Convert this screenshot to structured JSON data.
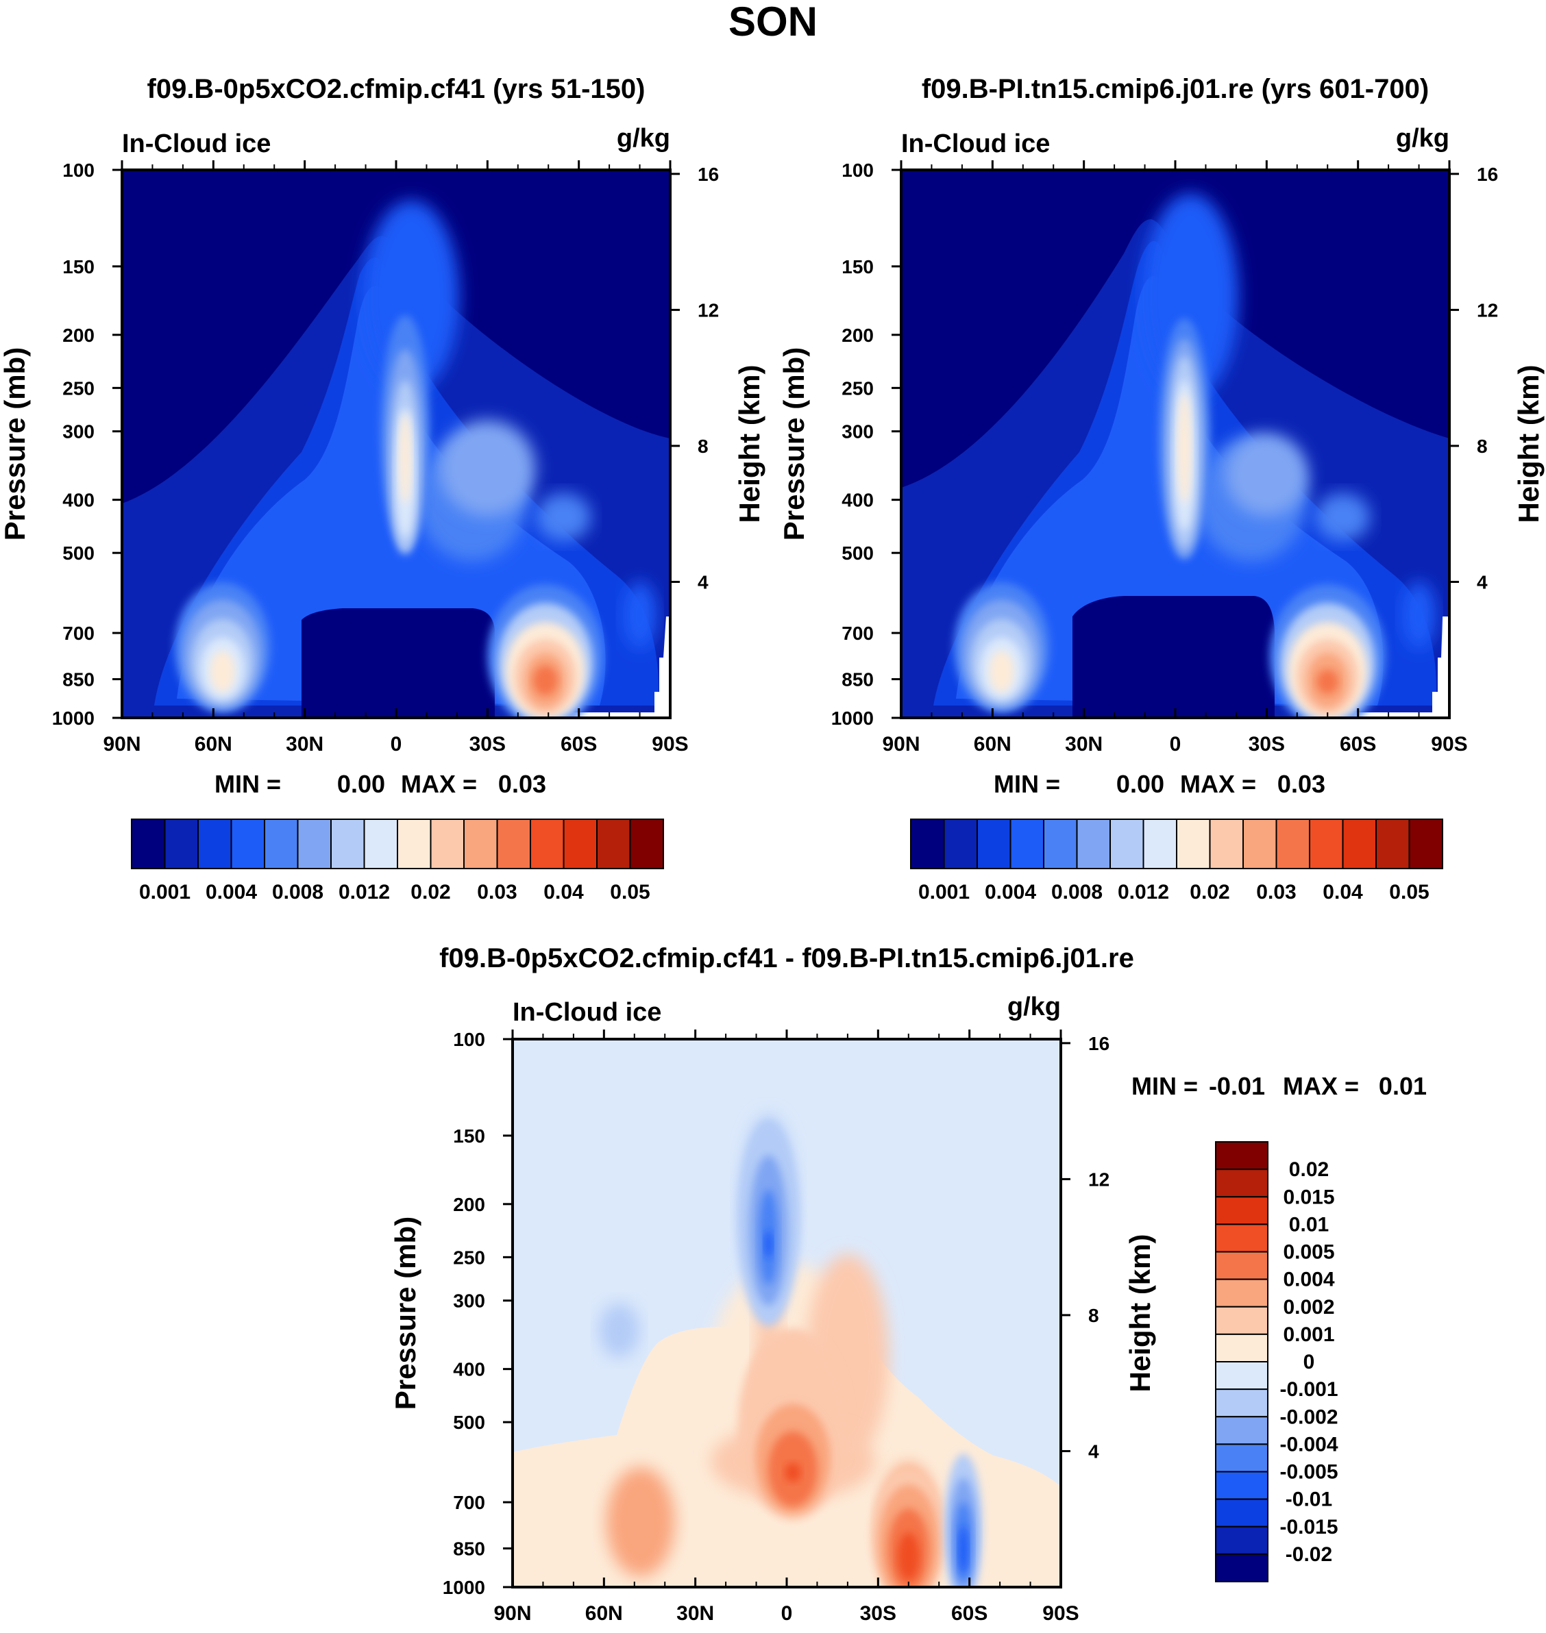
{
  "figure_title": "SON",
  "chart_data": [
    {
      "type": "contour",
      "title": "f09.B-0p5xCO2.cfmip.cf41 (yrs 51-150)",
      "variable": "In-Cloud ice",
      "units": "g/kg",
      "ylabel": "Pressure (mb)",
      "ylabel_right": "Height (km)",
      "x_ticks": [
        "90N",
        "60N",
        "30N",
        "0",
        "30S",
        "60S",
        "90S"
      ],
      "y_ticks": [
        100,
        150,
        200,
        250,
        300,
        400,
        500,
        700,
        850,
        1000
      ],
      "height_ticks": [
        16,
        12,
        8,
        4
      ],
      "stats": {
        "min_label": "MIN =",
        "min": "0.00",
        "max_label": "MAX =",
        "max": "0.03"
      },
      "colorbar": {
        "orientation": "horizontal",
        "colors": [
          "#00007f",
          "#0a23b4",
          "#0d40e2",
          "#1e5cf8",
          "#4a82f5",
          "#80a6f3",
          "#b3ccf7",
          "#dce9fb",
          "#fdebd8",
          "#fcc9ad",
          "#f9a57d",
          "#f5754a",
          "#f04e24",
          "#e03410",
          "#b4200a",
          "#800000"
        ],
        "labels": [
          "0.001",
          "0.004",
          "0.008",
          "0.012",
          "0.02",
          "0.03",
          "0.04",
          "0.05"
        ]
      },
      "features": [
        {
          "lat": -3,
          "p": 300,
          "value": 0.02
        },
        {
          "lat": 57,
          "p": 800,
          "value": 0.02
        },
        {
          "lat": -49,
          "p": 830,
          "value": 0.03
        }
      ]
    },
    {
      "type": "contour",
      "title": "f09.B-PI.tn15.cmip6.j01.re (yrs 601-700)",
      "variable": "In-Cloud ice",
      "units": "g/kg",
      "ylabel": "Pressure (mb)",
      "ylabel_right": "Height (km)",
      "x_ticks": [
        "90N",
        "60N",
        "30N",
        "0",
        "30S",
        "60S",
        "90S"
      ],
      "y_ticks": [
        100,
        150,
        200,
        250,
        300,
        400,
        500,
        700,
        850,
        1000
      ],
      "height_ticks": [
        16,
        12,
        8,
        4
      ],
      "stats": {
        "min_label": "MIN =",
        "min": "0.00",
        "max_label": "MAX =",
        "max": "0.03"
      },
      "colorbar": {
        "orientation": "horizontal",
        "colors": [
          "#00007f",
          "#0a23b4",
          "#0d40e2",
          "#1e5cf8",
          "#4a82f5",
          "#80a6f3",
          "#b3ccf7",
          "#dce9fb",
          "#fdebd8",
          "#fcc9ad",
          "#f9a57d",
          "#f5754a",
          "#f04e24",
          "#e03410",
          "#b4200a",
          "#800000"
        ],
        "labels": [
          "0.001",
          "0.004",
          "0.008",
          "0.012",
          "0.02",
          "0.03",
          "0.04",
          "0.05"
        ]
      },
      "features": [
        {
          "lat": -3,
          "p": 300,
          "value": 0.02
        },
        {
          "lat": 57,
          "p": 800,
          "value": 0.02
        },
        {
          "lat": -50,
          "p": 830,
          "value": 0.03
        }
      ]
    },
    {
      "type": "contour",
      "title": "f09.B-0p5xCO2.cfmip.cf41 - f09.B-PI.tn15.cmip6.j01.re",
      "variable": "In-Cloud ice",
      "units": "g/kg",
      "ylabel": "Pressure (mb)",
      "ylabel_right": "Height (km)",
      "x_ticks": [
        "90N",
        "60N",
        "30N",
        "0",
        "30S",
        "60S",
        "90S"
      ],
      "y_ticks": [
        100,
        150,
        200,
        250,
        300,
        400,
        500,
        700,
        850,
        1000
      ],
      "height_ticks": [
        16,
        12,
        8,
        4
      ],
      "stats": {
        "min_label": "MIN =",
        "min": "-0.01",
        "max_label": "MAX =",
        "max": "0.01"
      },
      "colorbar": {
        "orientation": "vertical",
        "colors": [
          "#800000",
          "#b4200a",
          "#e03410",
          "#f04e24",
          "#f5754a",
          "#f9a57d",
          "#fcc9ad",
          "#fdebd8",
          "#dce9fb",
          "#b3ccf7",
          "#80a6f3",
          "#4a82f5",
          "#1e5cf8",
          "#0d40e2",
          "#0a23b4",
          "#00007f"
        ],
        "labels": [
          "0.02",
          "0.015",
          "0.01",
          "0.005",
          "0.004",
          "0.002",
          "0.001",
          "0",
          "-0.001",
          "-0.002",
          "-0.004",
          "-0.005",
          "-0.01",
          "-0.015",
          "-0.02"
        ]
      },
      "features": [
        {
          "lat": 6,
          "p": 230,
          "value": -0.005
        },
        {
          "lat": -40,
          "p": 830,
          "value": 0.005
        },
        {
          "lat": -58,
          "p": 830,
          "value": -0.005
        },
        {
          "lat": -2,
          "p": 600,
          "value": 0.005
        }
      ]
    }
  ]
}
